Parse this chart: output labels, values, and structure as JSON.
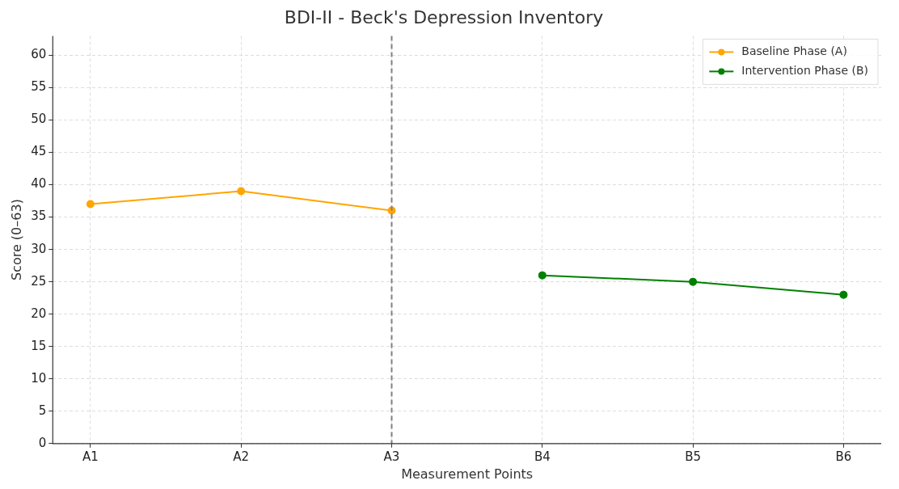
{
  "chart_data": {
    "type": "line",
    "title": "BDI-II - Beck's Depression Inventory",
    "xlabel": "Measurement Points",
    "ylabel": "Score (0–63)",
    "categories": [
      "A1",
      "A2",
      "A3",
      "B4",
      "B5",
      "B6"
    ],
    "series": [
      {
        "name": "Baseline Phase (A)",
        "color": "#ffa500",
        "values": [
          37,
          39,
          36,
          null,
          null,
          null
        ]
      },
      {
        "name": "Intervention Phase (B)",
        "color": "#008000",
        "values": [
          null,
          null,
          null,
          26,
          25,
          23
        ]
      }
    ],
    "ylim": [
      0,
      63
    ],
    "yticks": [
      0,
      5,
      10,
      15,
      20,
      25,
      30,
      35,
      40,
      45,
      50,
      55,
      60
    ],
    "ref_lines": [
      {
        "axis": "x",
        "value": "A3",
        "color": "#808080",
        "line_style": "dashed"
      }
    ],
    "grid": true,
    "legend": "top right",
    "marker": "circle",
    "line_style": "solid"
  }
}
